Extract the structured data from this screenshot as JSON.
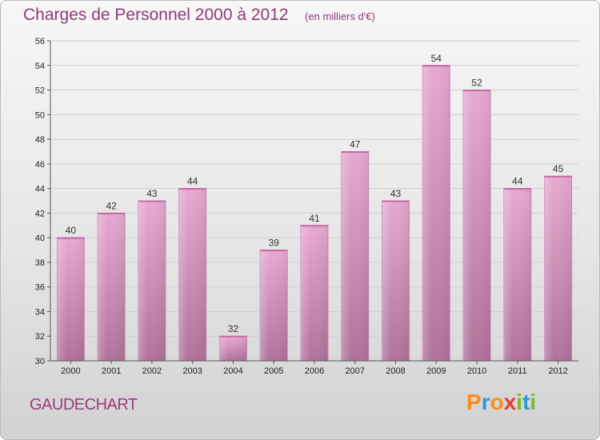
{
  "header": {
    "title": "Charges de Personnel 2000 à 2012",
    "unit": "(en milliers d'€)"
  },
  "footer": {
    "town": "GAUDECHART",
    "logo": "Proxiti"
  },
  "colors": {
    "bar_top": "#e7a9d1",
    "bar_bottom": "#b0729a",
    "title": "#8f3b74",
    "logo": [
      "#ff8c1a",
      "#2a9bd8",
      "#ff8c1a",
      "#e63c2e",
      "#7cb828",
      "#2a9bd8",
      "#7cb828"
    ]
  },
  "chart_data": {
    "type": "bar",
    "title": "Charges de Personnel 2000 à 2012",
    "subtitle": "(en milliers d'€)",
    "categories": [
      "2000",
      "2001",
      "2002",
      "2003",
      "2004",
      "2005",
      "2006",
      "2007",
      "2008",
      "2009",
      "2010",
      "2011",
      "2012"
    ],
    "values": [
      40,
      42,
      43,
      44,
      32,
      39,
      41,
      47,
      43,
      54,
      52,
      44,
      45
    ],
    "ylim": [
      30,
      56
    ],
    "yticks": [
      30,
      32,
      34,
      36,
      38,
      40,
      42,
      44,
      46,
      48,
      50,
      52,
      54,
      56
    ],
    "grid": true,
    "data_labels": true
  }
}
